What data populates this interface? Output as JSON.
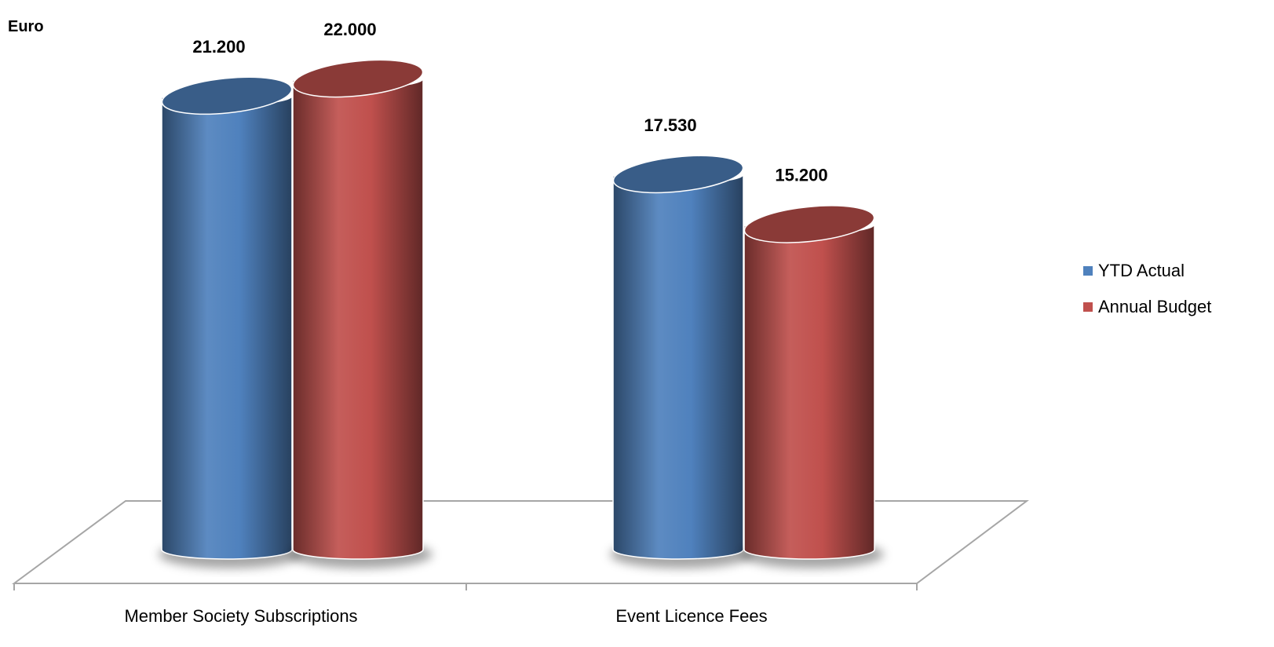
{
  "chart_data": {
    "type": "bar",
    "style": "3d-cylinder",
    "ylabel": "Euro",
    "xlabel": "",
    "categories": [
      "Member Society Subscriptions",
      "Event Licence Fees"
    ],
    "series": [
      {
        "name": "YTD Actual",
        "values": [
          21200,
          17530
        ],
        "labels": [
          "21.200",
          "17.530"
        ],
        "color": "#4f81bd"
      },
      {
        "name": "Annual Budget",
        "values": [
          22000,
          15200
        ],
        "labels": [
          "22.000",
          "15.200"
        ],
        "color": "#c0504d"
      }
    ],
    "ylim": [
      0,
      22000
    ],
    "grid": false,
    "legend": "right"
  }
}
